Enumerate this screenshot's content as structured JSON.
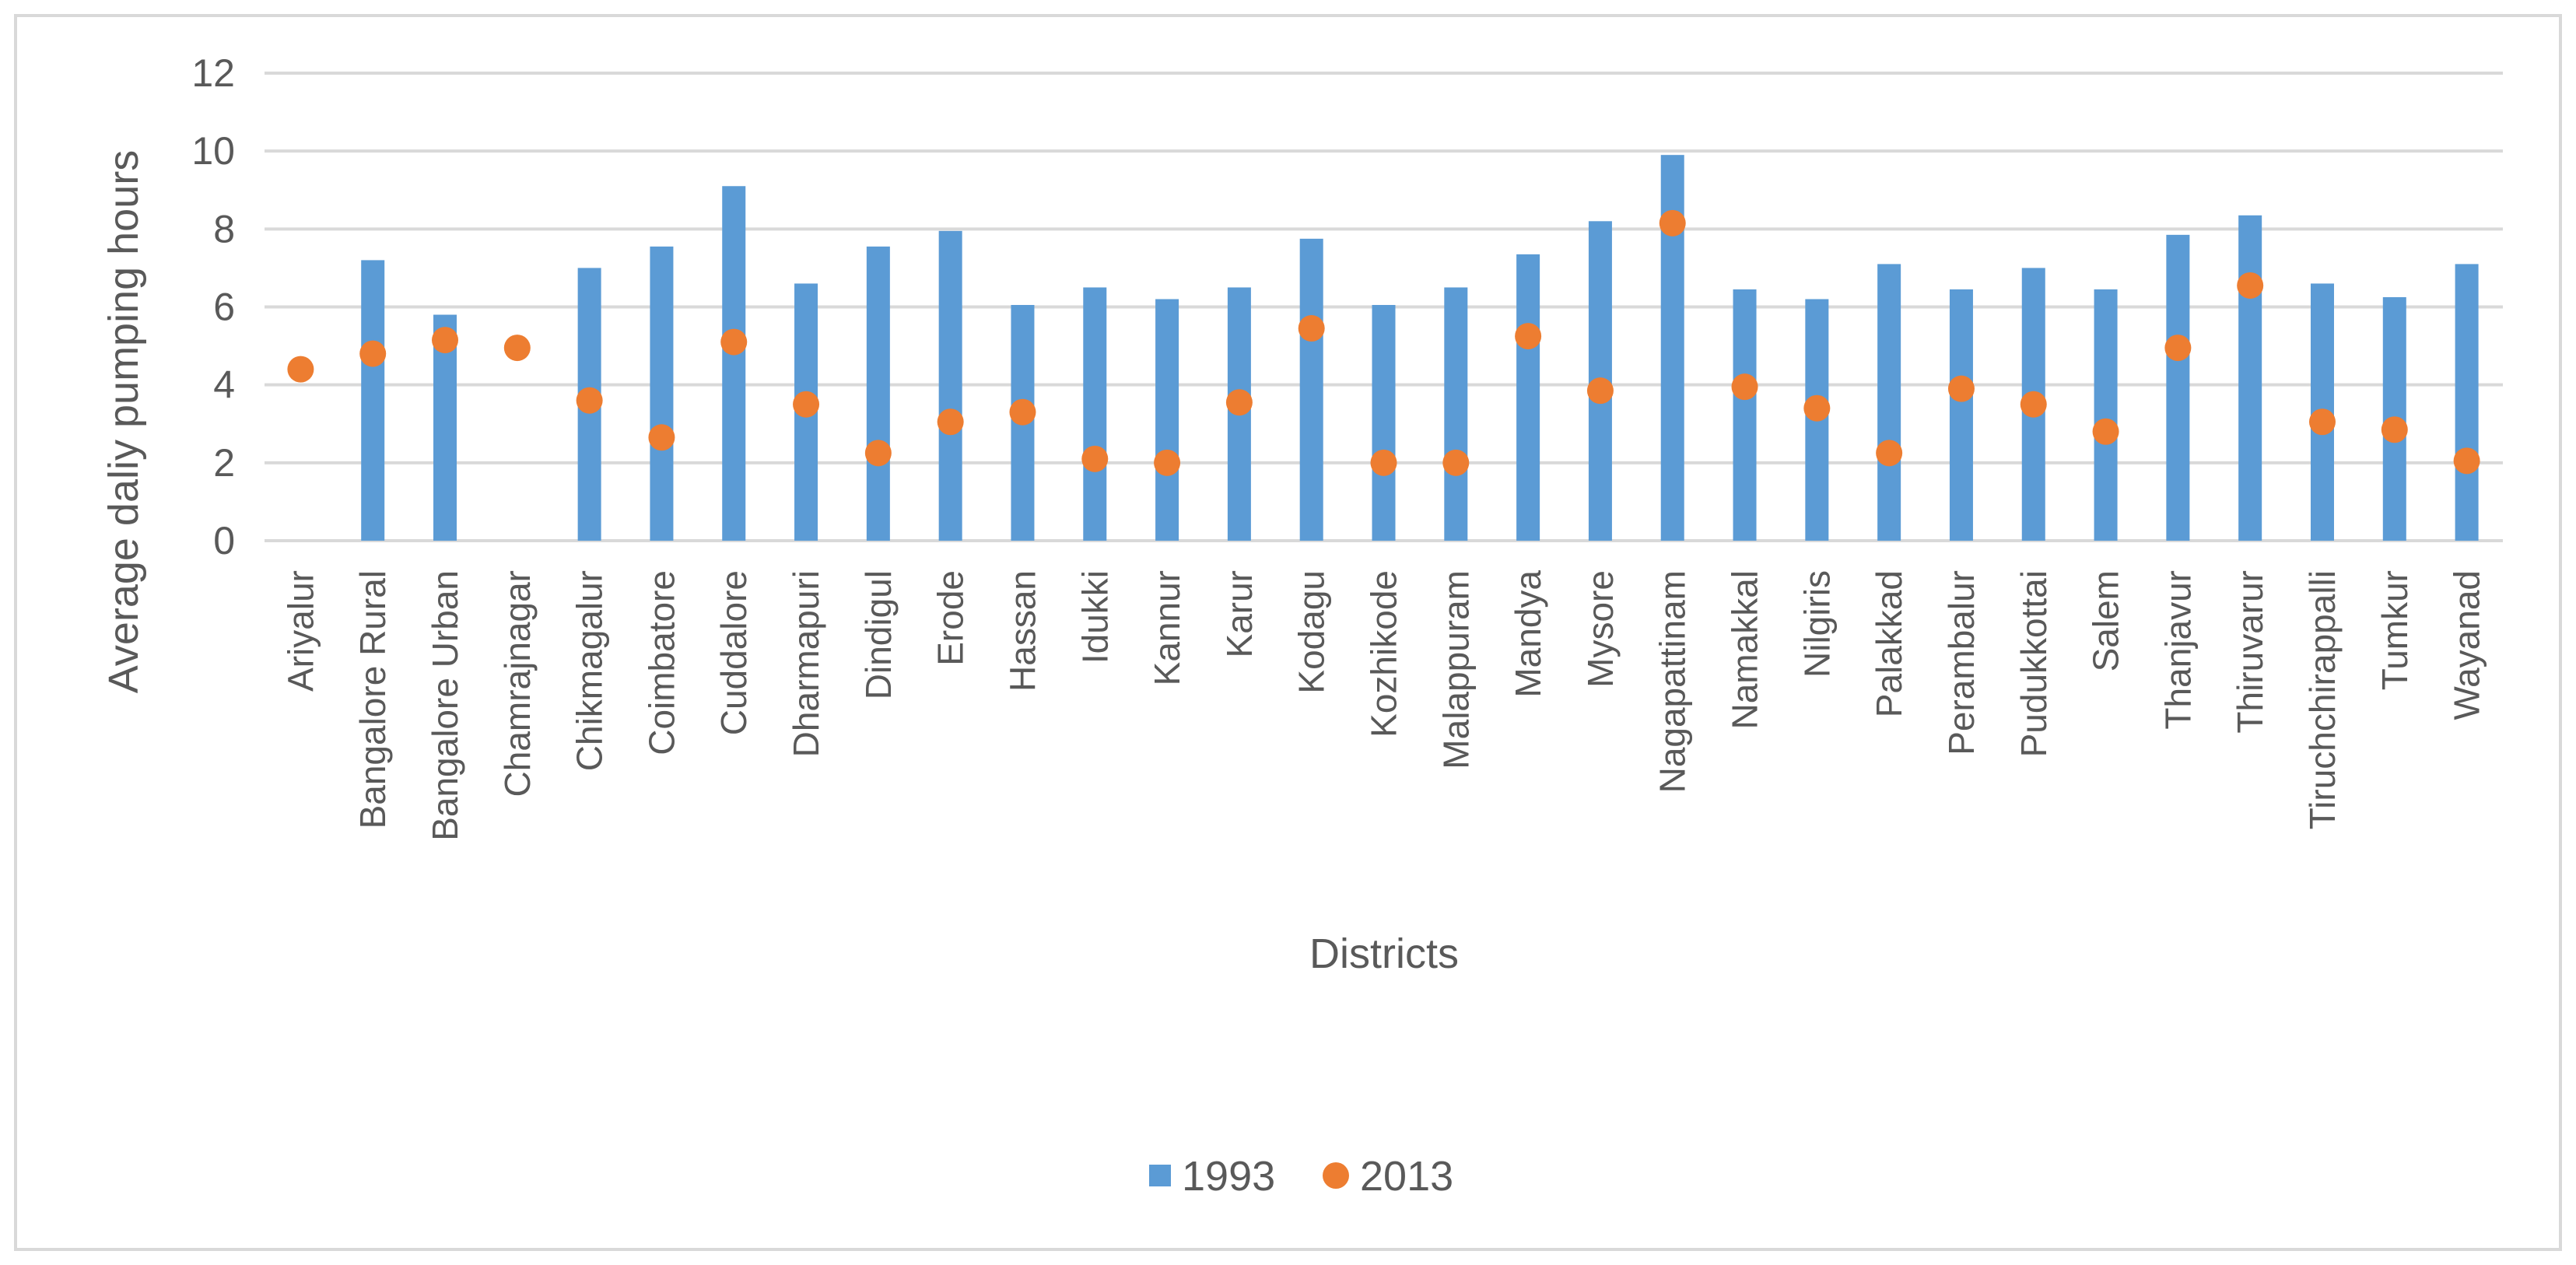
{
  "chart_data": {
    "type": "bar",
    "title": "",
    "xlabel": "Districts",
    "ylabel": "Average daliy pumping hours",
    "ylim": [
      0,
      12
    ],
    "yticks": [
      0,
      2,
      4,
      6,
      8,
      10,
      12
    ],
    "grid": true,
    "legend_position": "bottom",
    "categories": [
      "Ariyalur",
      "Bangalore Rural",
      "Bangalore Urban",
      "Chamrajnagar",
      "Chikmagalur",
      "Coimbatore",
      "Cuddalore",
      "Dharmapuri",
      "Dindigul",
      "Erode",
      "Hassan",
      "Idukki",
      "Kannur",
      "Karur",
      "Kodagu",
      "Kozhikode",
      "Malappuram",
      "Mandya",
      "Mysore",
      "Nagapattinam",
      "Namakkal",
      "Nilgiris",
      "Palakkad",
      "Perambalur",
      "Pudukkottai",
      "Salem",
      "Thanjavur",
      "Thiruvarur",
      "Tiruchchirappalli",
      "Tumkur",
      "Wayanad"
    ],
    "series": [
      {
        "name": "1993",
        "mark": "bar",
        "color": "#5b9bd5",
        "values": [
          null,
          7.2,
          5.8,
          null,
          7.0,
          7.55,
          9.1,
          6.6,
          7.55,
          7.95,
          6.05,
          6.5,
          6.2,
          6.5,
          7.75,
          6.05,
          6.5,
          7.35,
          8.2,
          9.9,
          6.45,
          6.2,
          7.1,
          6.45,
          7.0,
          6.45,
          7.85,
          8.35,
          6.6,
          6.25,
          7.1
        ]
      },
      {
        "name": "2013",
        "mark": "marker",
        "color": "#ed7d31",
        "values": [
          4.4,
          4.8,
          5.15,
          4.95,
          3.6,
          2.65,
          5.1,
          3.5,
          2.25,
          3.05,
          3.3,
          2.1,
          2.0,
          3.55,
          5.45,
          2.0,
          2.0,
          5.25,
          3.85,
          8.15,
          3.95,
          3.4,
          2.25,
          3.9,
          3.5,
          2.8,
          4.95,
          6.55,
          3.05,
          2.85,
          2.05
        ]
      }
    ]
  }
}
